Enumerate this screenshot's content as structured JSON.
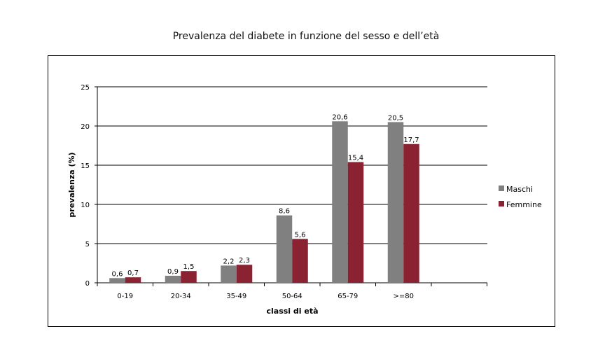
{
  "chart_data": {
    "type": "bar",
    "title": "Prevalenza del diabete in funzione del sesso e dell’età",
    "xlabel": "classi di età",
    "ylabel": "prevalenza (%)",
    "categories": [
      "0-19",
      "20-34",
      "35-49",
      "50-64",
      "65-79",
      ">=80"
    ],
    "series": [
      {
        "name": "Maschi",
        "color": "#808080",
        "values": [
          0.6,
          0.9,
          2.2,
          8.6,
          20.6,
          20.5
        ],
        "labels": [
          "0,6",
          "0,9",
          "2,2",
          "8,6",
          "20,6",
          "20,5"
        ]
      },
      {
        "name": "Femmine",
        "color": "#8B2232",
        "values": [
          0.7,
          1.5,
          2.3,
          5.6,
          15.4,
          17.7
        ],
        "labels": [
          "0,7",
          "1,5",
          "2,3",
          "5,6",
          "15,4",
          "17,7"
        ]
      }
    ],
    "ylim": [
      0,
      25
    ],
    "yticks": [
      0,
      5,
      10,
      15,
      20,
      25
    ],
    "grid": true,
    "legend_position": "right"
  }
}
